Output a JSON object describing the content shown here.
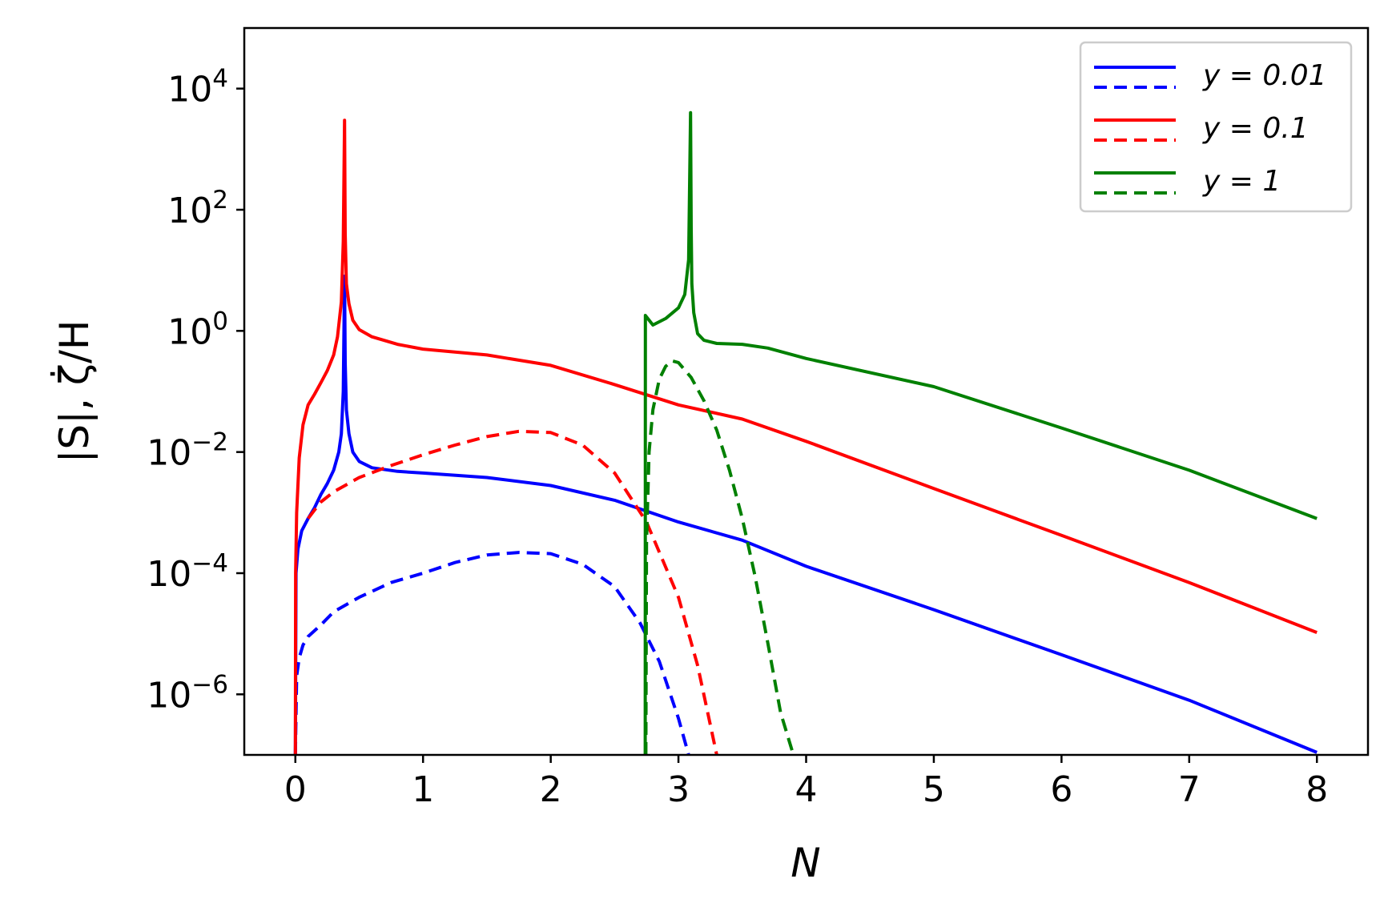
{
  "chart_data": {
    "type": "line",
    "xlabel": "N",
    "ylabel": "|S|, ζ̇/H",
    "xlim": [
      -0.4,
      8.4
    ],
    "ylim": [
      1e-07,
      100000.0
    ],
    "yscale": "log",
    "xticks": [
      "0",
      "1",
      "2",
      "3",
      "4",
      "5",
      "6",
      "7",
      "8"
    ],
    "yticks": [
      {
        "base": "10",
        "exp": "4"
      },
      {
        "base": "10",
        "exp": "2"
      },
      {
        "base": "10",
        "exp": "0"
      },
      {
        "base": "10",
        "exp": "−2"
      },
      {
        "base": "10",
        "exp": "−4"
      },
      {
        "base": "10",
        "exp": "−6"
      }
    ],
    "legend_position": "top-right",
    "grid": false,
    "legend": [
      {
        "label": "y = 0.01",
        "color": "#0000ff"
      },
      {
        "label": "y = 0.1",
        "color": "#ff0000"
      },
      {
        "label": "y = 1",
        "color": "#008000"
      }
    ],
    "series": [
      {
        "color": "#0000ff",
        "style": "solid",
        "x": [
          0.0,
          0.005,
          0.02,
          0.05,
          0.1,
          0.15,
          0.2,
          0.25,
          0.3,
          0.34,
          0.36,
          0.375,
          0.385,
          0.39,
          0.4,
          0.42,
          0.45,
          0.5,
          0.6,
          0.8,
          1.0,
          1.5,
          2.0,
          2.5,
          3.0,
          3.5,
          4.0,
          5.0,
          6.0,
          7.0,
          8.0
        ],
        "y": [
          1e-07,
          0.0001,
          0.00025,
          0.0005,
          0.0008,
          0.0012,
          0.002,
          0.003,
          0.005,
          0.01,
          0.02,
          0.1,
          8,
          0.3,
          0.05,
          0.02,
          0.01,
          0.007,
          0.0055,
          0.0048,
          0.0045,
          0.0038,
          0.0028,
          0.0016,
          0.0007,
          0.00035,
          0.00013,
          2.5e-05,
          4.5e-06,
          8e-07,
          1.1e-07
        ]
      },
      {
        "color": "#0000ff",
        "style": "dashed",
        "x": [
          0.0,
          0.01,
          0.03,
          0.06,
          0.1,
          0.2,
          0.3,
          0.5,
          0.75,
          1.0,
          1.25,
          1.5,
          1.75,
          2.0,
          2.25,
          2.5,
          2.7,
          2.85,
          3.0,
          3.08
        ],
        "y": [
          1e-07,
          2e-06,
          4e-06,
          6.5e-06,
          9e-06,
          1.4e-05,
          2.3e-05,
          4e-05,
          7e-05,
          0.0001,
          0.00015,
          0.0002,
          0.00022,
          0.00021,
          0.00014,
          6e-05,
          1.5e-05,
          3.5e-06,
          4e-07,
          1e-07
        ]
      },
      {
        "color": "#ff0000",
        "style": "solid",
        "x": [
          0.0,
          0.002,
          0.01,
          0.03,
          0.06,
          0.1,
          0.15,
          0.2,
          0.25,
          0.3,
          0.33,
          0.36,
          0.375,
          0.385,
          0.39,
          0.4,
          0.42,
          0.45,
          0.5,
          0.6,
          0.8,
          1.0,
          1.5,
          2.0,
          2.5,
          3.0,
          3.5,
          4.0,
          5.0,
          6.0,
          7.0,
          8.0
        ],
        "y": [
          1e-07,
          0.0001,
          0.001,
          0.008,
          0.028,
          0.06,
          0.09,
          0.14,
          0.22,
          0.4,
          0.8,
          3,
          30,
          3000,
          40,
          6,
          2.8,
          1.5,
          1.05,
          0.8,
          0.6,
          0.5,
          0.4,
          0.27,
          0.13,
          0.06,
          0.035,
          0.015,
          0.0025,
          0.00042,
          7e-05,
          1.05e-05
        ]
      },
      {
        "color": "#ff0000",
        "style": "dashed",
        "x": [
          0.1,
          0.15,
          0.2,
          0.3,
          0.5,
          0.75,
          1.0,
          1.25,
          1.5,
          1.75,
          2.0,
          2.25,
          2.5,
          2.75,
          3.0,
          3.15,
          3.3
        ],
        "y": [
          0.0008,
          0.0011,
          0.0015,
          0.0022,
          0.0038,
          0.006,
          0.009,
          0.013,
          0.018,
          0.022,
          0.021,
          0.013,
          0.0045,
          0.0007,
          4e-05,
          3e-06,
          1e-07
        ]
      },
      {
        "color": "#008000",
        "style": "solid",
        "x": [
          2.74,
          2.741,
          2.75,
          2.8,
          2.9,
          3.0,
          3.05,
          3.08,
          3.095,
          3.1,
          3.105,
          3.12,
          3.15,
          3.2,
          3.3,
          3.5,
          3.7,
          4.0,
          5.0,
          6.0,
          7.0,
          8.0
        ],
        "y": [
          1e-07,
          1.8,
          1.7,
          1.25,
          1.6,
          2.4,
          4,
          15,
          4000,
          50,
          6,
          2,
          0.9,
          0.7,
          0.62,
          0.6,
          0.52,
          0.35,
          0.12,
          0.025,
          0.005,
          0.0008
        ]
      },
      {
        "color": "#008000",
        "style": "dashed",
        "x": [
          2.745,
          2.75,
          2.77,
          2.8,
          2.85,
          2.9,
          2.95,
          3.0,
          3.1,
          3.2,
          3.3,
          3.4,
          3.5,
          3.6,
          3.7,
          3.8,
          3.9
        ],
        "y": [
          1e-07,
          0.0003,
          0.01,
          0.05,
          0.16,
          0.26,
          0.32,
          0.3,
          0.17,
          0.07,
          0.023,
          0.005,
          0.0008,
          9e-05,
          7e-06,
          5e-07,
          1e-07
        ]
      }
    ]
  }
}
